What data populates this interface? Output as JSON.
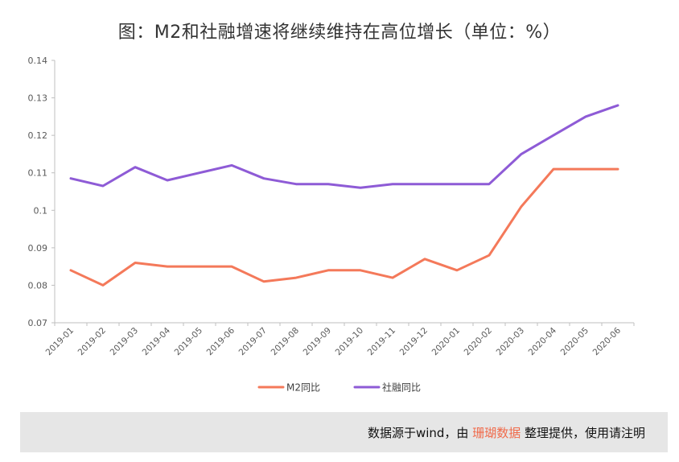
{
  "chart_data": {
    "type": "line",
    "title": "图：M2和社融增速将继续维持在高位增长（单位：%）",
    "categories": [
      "2019-01",
      "2019-02",
      "2019-03",
      "2019-04",
      "2019-05",
      "2019-06",
      "2019-07",
      "2019-08",
      "2019-09",
      "2019-10",
      "2019-11",
      "2019-12",
      "2020-01",
      "2020-02",
      "2020-03",
      "2020-04",
      "2020-05",
      "2020-06"
    ],
    "series": [
      {
        "name": "M2同比",
        "color": "#f4795a",
        "values": [
          0.084,
          0.08,
          0.086,
          0.085,
          0.085,
          0.085,
          0.081,
          0.082,
          0.084,
          0.084,
          0.082,
          0.087,
          0.084,
          0.088,
          0.101,
          0.111,
          0.111,
          0.111
        ]
      },
      {
        "name": "社融同比",
        "color": "#8e5bd6",
        "values": [
          0.1085,
          0.1065,
          0.1115,
          0.108,
          0.11,
          0.112,
          0.1085,
          0.107,
          0.107,
          0.106,
          0.107,
          0.107,
          0.107,
          0.107,
          0.115,
          0.12,
          0.125,
          0.128
        ]
      }
    ],
    "yticks": [
      "0.07",
      "0.08",
      "0.09",
      "0.1",
      "0.11",
      "0.12",
      "0.13",
      "0.14"
    ],
    "ylim": [
      0.07,
      0.14
    ],
    "grid": false,
    "legend": "bottom-center"
  },
  "footer": {
    "source_prefix": "数据源于wind，由 ",
    "brand": "珊瑚数据",
    "source_suffix": " 整理提供，使用请注明"
  }
}
